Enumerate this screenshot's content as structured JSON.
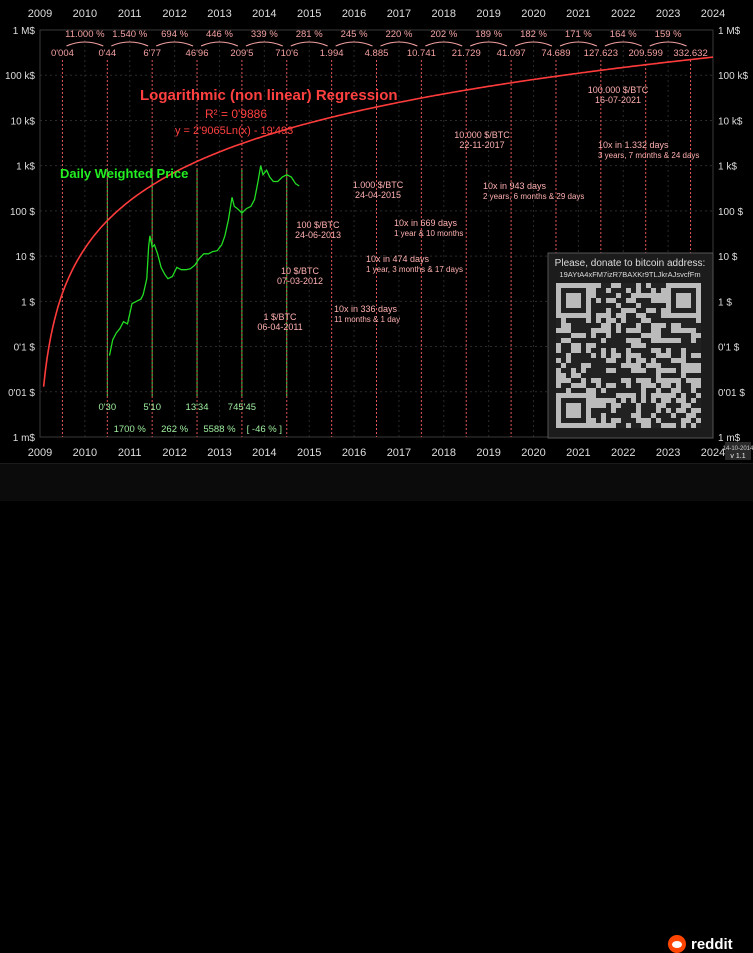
{
  "chart_data": {
    "type": "line",
    "title": "Logarithmic (non linear) Regression",
    "regression": {
      "r2_label": "R² = 0'9886",
      "equation": "y = 2'9065Ln(x) - 19'493"
    },
    "series_label": "Daily Weighted Price",
    "x_axis_years": [
      "2009",
      "2010",
      "2011",
      "2012",
      "2013",
      "2014",
      "2015",
      "2016",
      "2017",
      "2018",
      "2019",
      "2020",
      "2021",
      "2022",
      "2023",
      "2024"
    ],
    "y_axis_ticks_left": [
      "1 M$",
      "100 k$",
      "10 k$",
      "1 k$",
      "100 $",
      "10 $",
      "1 $",
      "0'1 $",
      "0'01 $",
      "1 m$"
    ],
    "y_axis_ticks_right": [
      "1 M$",
      "100 k$",
      "10 k$",
      "1 k$",
      "100 $",
      "10 $",
      "1 $",
      "0'1 $",
      "0'01 $",
      "1 m$"
    ],
    "yscale": "log",
    "grid": true,
    "yearly_regression_values": [
      "0'004",
      "0'44",
      "6'77",
      "46'96",
      "209'5",
      "710'6",
      "1.994",
      "4.885",
      "10.741",
      "21.729",
      "41.097",
      "74.689",
      "127.623",
      "209.599",
      "332.632"
    ],
    "yearly_growth_pct": [
      "11.000 %",
      "1.540 %",
      "694 %",
      "446 %",
      "339 %",
      "281 %",
      "245 %",
      "220 %",
      "202 %",
      "189 %",
      "182 %",
      "171 %",
      "164 %",
      "159 %"
    ],
    "actual_year_values": [
      "0'30",
      "5'10",
      "13'34",
      "745'45"
    ],
    "actual_year_growth": [
      "1700 %",
      "262 %",
      "5588 %",
      "[ -46 % ]"
    ],
    "milestones": [
      {
        "price": "1 $/BTC",
        "date": "06-04-2011"
      },
      {
        "price": "10 $/BTC",
        "date": "07-03-2012"
      },
      {
        "price": "100 $/BTC",
        "date": "24-06-2013"
      },
      {
        "price": "1.000 $/BTC",
        "date": "24-04-2015"
      },
      {
        "price": "10.000 $/BTC",
        "date": "22-11-2017"
      },
      {
        "price": "100.000 $/BTC",
        "date": "16-07-2021"
      }
    ],
    "intervals": [
      {
        "title": "10x in 336 days",
        "detail": "11 months & 1 day"
      },
      {
        "title": "10x in 474 days",
        "detail": "1 year, 3 months & 17 days"
      },
      {
        "title": "10x in 669 days",
        "detail": "1 year & 10 months"
      },
      {
        "title": "10x in 943 days",
        "detail": "2 years, 6 months & 29 days"
      },
      {
        "title": "10x  in 1.332 days",
        "detail": "3 years, 7 months & 24 days"
      }
    ],
    "price_series": [
      [
        2010.55,
        -1.2
      ],
      [
        2010.62,
        -0.85
      ],
      [
        2010.7,
        -0.7
      ],
      [
        2010.78,
        -0.6
      ],
      [
        2010.86,
        -0.45
      ],
      [
        2010.95,
        -0.5
      ],
      [
        2011.05,
        -0.05
      ],
      [
        2011.15,
        0.0
      ],
      [
        2011.25,
        0.05
      ],
      [
        2011.3,
        0.15
      ],
      [
        2011.38,
        0.5
      ],
      [
        2011.42,
        1.2
      ],
      [
        2011.45,
        1.45
      ],
      [
        2011.5,
        1.2
      ],
      [
        2011.55,
        1.25
      ],
      [
        2011.62,
        1.05
      ],
      [
        2011.7,
        0.75
      ],
      [
        2011.78,
        0.6
      ],
      [
        2011.85,
        0.5
      ],
      [
        2011.95,
        0.55
      ],
      [
        2012.05,
        0.75
      ],
      [
        2012.15,
        0.7
      ],
      [
        2012.25,
        0.7
      ],
      [
        2012.35,
        0.72
      ],
      [
        2012.45,
        0.8
      ],
      [
        2012.55,
        0.95
      ],
      [
        2012.65,
        1.05
      ],
      [
        2012.75,
        1.05
      ],
      [
        2012.85,
        1.1
      ],
      [
        2012.95,
        1.12
      ],
      [
        2013.05,
        1.25
      ],
      [
        2013.12,
        1.45
      ],
      [
        2013.2,
        1.8
      ],
      [
        2013.28,
        2.3
      ],
      [
        2013.33,
        2.1
      ],
      [
        2013.4,
        2.05
      ],
      [
        2013.5,
        1.95
      ],
      [
        2013.6,
        2.05
      ],
      [
        2013.7,
        2.1
      ],
      [
        2013.78,
        2.25
      ],
      [
        2013.85,
        2.6
      ],
      [
        2013.92,
        3.0
      ],
      [
        2013.97,
        2.8
      ],
      [
        2014.05,
        2.9
      ],
      [
        2014.12,
        2.75
      ],
      [
        2014.2,
        2.65
      ],
      [
        2014.3,
        2.65
      ],
      [
        2014.4,
        2.75
      ],
      [
        2014.5,
        2.8
      ],
      [
        2014.6,
        2.75
      ],
      [
        2014.7,
        2.6
      ],
      [
        2014.78,
        2.55
      ]
    ]
  },
  "donation": {
    "title": "Please, donate to bitcoin address:",
    "address": "19AYtA4xFM7izR7BAXKr9TLJkrAJsvcfFm"
  },
  "version": {
    "date": "14-10-2014",
    "label": "v 1.1"
  },
  "footer": {
    "brand": "reddit"
  }
}
